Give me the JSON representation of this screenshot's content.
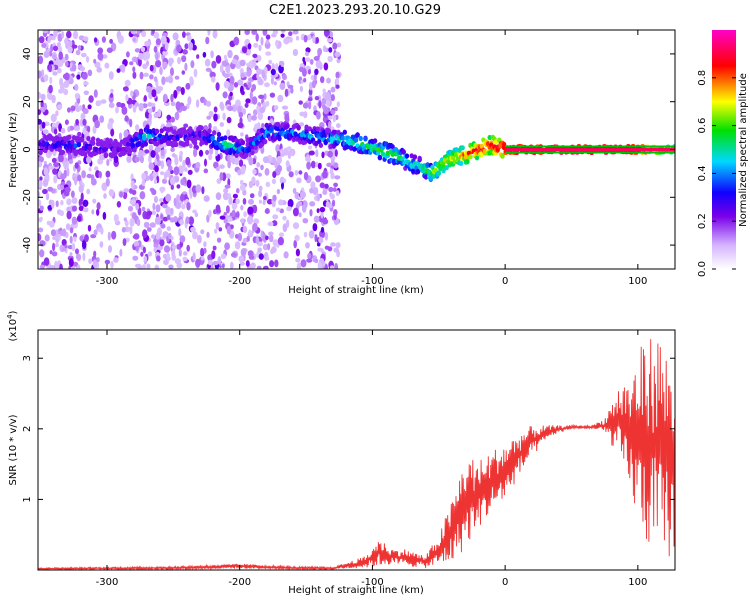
{
  "title": "C2E1.2023.293.20.10.G29",
  "chart_data": [
    {
      "type": "heatmap",
      "xlabel": "Height of straight line (km)",
      "ylabel": "Frequency (Hz)",
      "xlim": [
        -352,
        128
      ],
      "ylim": [
        -50,
        50
      ],
      "x_ticks": [
        -300,
        -200,
        -100,
        0,
        100
      ],
      "y_ticks": [
        -40,
        -20,
        0,
        20,
        40
      ],
      "colorbar": {
        "label": "Normalized spectral amplitude",
        "range": [
          0,
          1
        ],
        "ticks": [
          0.0,
          0.2,
          0.4,
          0.6,
          0.8
        ],
        "tick_labels": [
          "0.0",
          "0.2",
          "0.4",
          "0.6",
          "0.8"
        ],
        "colors": [
          "#ffffff",
          "#7a00e8",
          "#0000ff",
          "#00d8ff",
          "#00e000",
          "#ffff00",
          "#ff0000",
          "#ff00c8"
        ]
      },
      "signal_track": {
        "x": [
          -350,
          -330,
          -310,
          -290,
          -270,
          -250,
          -230,
          -210,
          -195,
          -180,
          -160,
          -140,
          -120,
          -100,
          -90,
          -80,
          -70,
          -60,
          -55,
          -45,
          -35,
          -20,
          -10,
          0,
          50,
          100,
          128
        ],
        "freq": [
          2,
          2,
          1,
          0,
          6,
          5,
          6,
          2,
          0,
          7,
          7,
          5,
          4,
          1,
          -1,
          -3,
          -6,
          -8,
          -10,
          -5,
          -3,
          0,
          2,
          0,
          0,
          0,
          0
        ],
        "amplitude": [
          0.3,
          0.35,
          0.3,
          0.25,
          0.5,
          0.3,
          0.3,
          0.55,
          0.35,
          0.45,
          0.4,
          0.45,
          0.5,
          0.55,
          0.6,
          0.55,
          0.5,
          0.55,
          0.6,
          0.7,
          0.75,
          0.85,
          0.85,
          0.95,
          1.0,
          0.95,
          0.55
        ]
      },
      "noise_region_x": [
        -352,
        -125
      ]
    },
    {
      "type": "line",
      "xlabel": "Height of straight line (km)",
      "ylabel": "SNR (10 * v/v)",
      "y_scale_label": "(x10^4)",
      "xlim": [
        -352,
        128
      ],
      "ylim": [
        0,
        3.4
      ],
      "x_ticks": [
        -300,
        -200,
        -100,
        0,
        100
      ],
      "y_ticks": [
        1,
        2,
        3
      ],
      "color": "#ee3333",
      "envelope": {
        "x": [
          -352,
          -300,
          -250,
          -200,
          -160,
          -130,
          -105,
          -95,
          -85,
          -75,
          -60,
          -50,
          -40,
          -30,
          -20,
          -10,
          0,
          10,
          20,
          35,
          50,
          65,
          75,
          85,
          95,
          105,
          115,
          128
        ],
        "low": [
          0.01,
          0.01,
          0.01,
          0.02,
          0.01,
          0.01,
          0.03,
          0.05,
          0.08,
          0.05,
          0.03,
          0.05,
          0.1,
          0.3,
          0.6,
          0.8,
          1.0,
          1.3,
          1.6,
          1.9,
          2.0,
          2.0,
          1.95,
          1.6,
          1.0,
          0.4,
          0.1,
          0.2
        ],
        "high": [
          0.03,
          0.04,
          0.05,
          0.09,
          0.05,
          0.04,
          0.2,
          0.45,
          0.3,
          0.3,
          0.2,
          0.5,
          1.0,
          1.65,
          1.55,
          1.7,
          1.8,
          1.95,
          2.05,
          2.05,
          2.05,
          2.05,
          2.15,
          2.6,
          2.8,
          3.3,
          3.4,
          2.9
        ]
      }
    }
  ]
}
